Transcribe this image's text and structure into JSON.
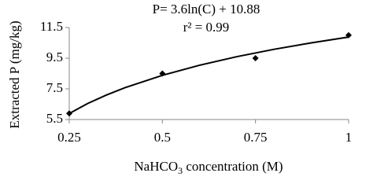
{
  "chart_data": {
    "type": "scatter",
    "annotation": [
      "P= 3.6ln(C) + 10.88",
      "r² = 0.99"
    ],
    "xlabel": [
      "NaHCO",
      "3",
      " concentration (M)"
    ],
    "ylabel": "Extracted P (mg/kg)",
    "x": [
      0.25,
      0.5,
      0.75,
      1
    ],
    "values": [
      5.9,
      8.5,
      9.5,
      11.0
    ],
    "color": "#000000",
    "trendline": {
      "x": [
        0.25,
        0.3,
        0.35,
        0.4,
        0.5,
        0.6,
        0.7,
        0.8,
        0.9,
        1
      ],
      "values": [
        5.89,
        6.55,
        7.1,
        7.58,
        8.38,
        9.04,
        9.6,
        10.08,
        10.5,
        10.88
      ]
    },
    "xlim": [
      0.25,
      1
    ],
    "xticks": [
      0.25,
      0.5,
      0.75,
      1
    ],
    "ylim": [
      5.5,
      11.5
    ],
    "yticks": [
      5.5,
      7.5,
      9.5,
      11.5
    ]
  }
}
